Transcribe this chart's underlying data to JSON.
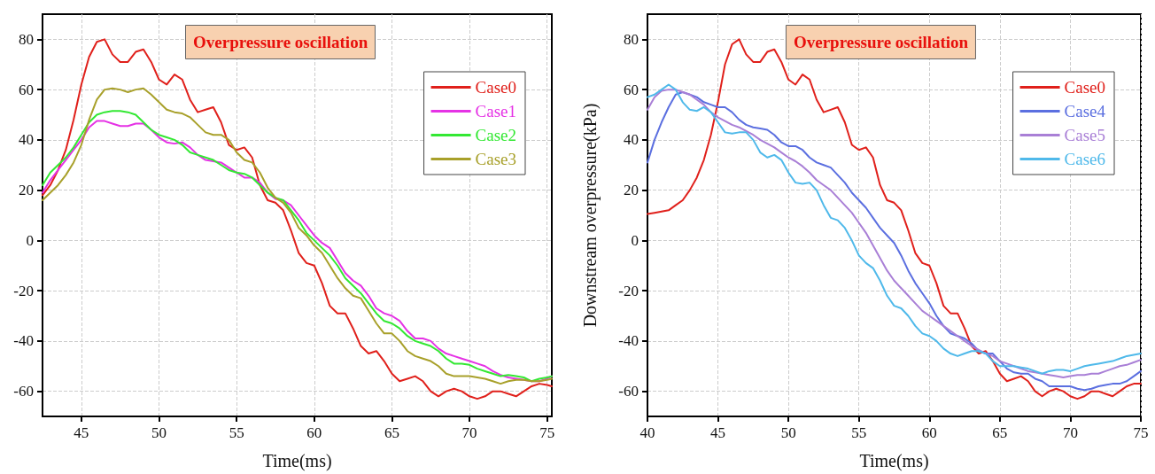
{
  "chart_data": [
    {
      "type": "line",
      "title": "Overpressure oscillation",
      "xlabel": "Time(ms)",
      "xlim": [
        42.5,
        75.3
      ],
      "ylim": [
        -70,
        90
      ],
      "xticks": [
        45,
        50,
        55,
        60,
        65,
        70,
        75
      ],
      "yticks": [
        -60,
        -40,
        -20,
        0,
        20,
        40,
        60,
        80
      ],
      "grid": true,
      "legend": "top right",
      "x": [
        42.5,
        43,
        43.5,
        44,
        44.5,
        45,
        45.5,
        46,
        46.5,
        47,
        47.5,
        48,
        48.5,
        49,
        49.5,
        50,
        50.5,
        51,
        51.5,
        52,
        52.5,
        53,
        53.5,
        54,
        54.5,
        55,
        55.5,
        56,
        56.5,
        57,
        57.5,
        58,
        58.5,
        59,
        59.5,
        60,
        60.5,
        61,
        61.5,
        62,
        62.5,
        63,
        63.5,
        64,
        64.5,
        65,
        65.5,
        66,
        66.5,
        67,
        67.5,
        68,
        68.5,
        69,
        69.5,
        70,
        70.5,
        71,
        71.5,
        72,
        72.5,
        73,
        73.5,
        74,
        74.5,
        75,
        75.3
      ],
      "series": [
        {
          "name": "Case0",
          "color": "#e0201b",
          "values": [
            18,
            22,
            28,
            36,
            48,
            62,
            73,
            79,
            80,
            74,
            71,
            71,
            75,
            76,
            71,
            64,
            62,
            66,
            64,
            56,
            51,
            52,
            53,
            47,
            38,
            36,
            37,
            33,
            22,
            16,
            15,
            12,
            4,
            -5,
            -9,
            -10,
            -17,
            -26,
            -29,
            -29,
            -35,
            -42,
            -45,
            -44,
            -48,
            -53,
            -56,
            -55,
            -54,
            -56,
            -60,
            -62,
            -60,
            -59,
            -60,
            -62,
            -63,
            -62,
            -60,
            -60,
            -61,
            -62,
            -60,
            -58,
            -57,
            -57.5,
            -58
          ]
        },
        {
          "name": "Case1",
          "color": "#e532e5",
          "values": [
            19,
            24,
            28,
            32,
            36,
            40,
            45,
            47.5,
            47.5,
            46.5,
            45.5,
            45.5,
            46.5,
            46.5,
            44,
            41,
            39,
            38.5,
            39,
            37,
            34,
            32,
            31.5,
            31,
            29,
            27,
            25,
            25,
            23,
            19,
            16.5,
            16,
            14,
            10,
            6,
            2,
            -1,
            -3,
            -8,
            -13,
            -16,
            -18,
            -22,
            -27,
            -29,
            -30,
            -32,
            -36,
            -39,
            -39,
            -40,
            -43,
            -45,
            -46,
            -47,
            -48,
            -49,
            -50,
            -52,
            -53.5,
            -54.5,
            -55,
            -55.5,
            -56,
            -56,
            -55,
            -54
          ]
        },
        {
          "name": "Case2",
          "color": "#33e833",
          "values": [
            22,
            27,
            30,
            33,
            37,
            42,
            47,
            50,
            51,
            51.5,
            51.5,
            51,
            50,
            47,
            44,
            42,
            41,
            40,
            38,
            35,
            34,
            33,
            32,
            30,
            28,
            27,
            26.5,
            25,
            22,
            19,
            17,
            16,
            12,
            8,
            3,
            0,
            -3,
            -6,
            -10,
            -15,
            -18,
            -21,
            -25,
            -29,
            -32,
            -33,
            -35,
            -38,
            -40,
            -41,
            -42,
            -44,
            -47,
            -49,
            -49,
            -49.5,
            -51,
            -52,
            -53,
            -54,
            -53.5,
            -54,
            -54.5,
            -56,
            -55,
            -54.5,
            -54
          ]
        },
        {
          "name": "Case3",
          "color": "#a8a02a",
          "values": [
            16,
            19,
            22,
            26,
            31,
            38,
            48,
            56,
            60,
            60.5,
            60,
            59,
            60,
            60.5,
            58,
            55,
            52,
            51,
            50.5,
            49,
            46,
            43,
            42,
            42,
            40,
            35,
            32,
            31,
            27,
            21,
            17,
            15,
            11,
            5,
            2,
            -2,
            -5,
            -10,
            -15,
            -19,
            -22,
            -23,
            -28,
            -33,
            -37,
            -37,
            -40,
            -44,
            -46,
            -47,
            -48,
            -50,
            -53,
            -54,
            -54,
            -54,
            -54.5,
            -55,
            -56,
            -57,
            -56,
            -55.5,
            -55.5,
            -56,
            -56,
            -55.5,
            -55
          ]
        }
      ]
    },
    {
      "type": "line",
      "title": "Overpressure oscillation",
      "xlabel": "Time(ms)",
      "ylabel": "Downstream overpressure(kPa)",
      "xlim": [
        40,
        75
      ],
      "ylim": [
        -70,
        90
      ],
      "xticks": [
        40,
        45,
        50,
        55,
        60,
        65,
        70,
        75
      ],
      "yticks": [
        -60,
        -40,
        -20,
        0,
        20,
        40,
        60,
        80
      ],
      "grid": true,
      "legend": "top right",
      "x": [
        40,
        40.5,
        41,
        41.5,
        42,
        42.5,
        43,
        43.5,
        44,
        44.5,
        45,
        45.5,
        46,
        46.5,
        47,
        47.5,
        48,
        48.5,
        49,
        49.5,
        50,
        50.5,
        51,
        51.5,
        52,
        52.5,
        53,
        53.5,
        54,
        54.5,
        55,
        55.5,
        56,
        56.5,
        57,
        57.5,
        58,
        58.5,
        59,
        59.5,
        60,
        60.5,
        61,
        61.5,
        62,
        62.5,
        63,
        63.5,
        64,
        64.5,
        65,
        65.5,
        66,
        66.5,
        67,
        67.5,
        68,
        68.5,
        69,
        69.5,
        70,
        70.5,
        71,
        71.5,
        72,
        72.5,
        73,
        73.5,
        74,
        74.5,
        75
      ],
      "series": [
        {
          "name": "Case0",
          "color": "#e0201b",
          "values": [
            10.5,
            11,
            11.5,
            12,
            14,
            16,
            20,
            25,
            32,
            42,
            55,
            70,
            78,
            80,
            74,
            71,
            71,
            75,
            76,
            71,
            64,
            62,
            66,
            64,
            56,
            51,
            52,
            53,
            47,
            38,
            36,
            37,
            33,
            22,
            16,
            15,
            12,
            4,
            -5,
            -9,
            -10,
            -17,
            -26,
            -29,
            -29,
            -35,
            -42,
            -45,
            -44,
            -48,
            -53,
            -56,
            -55,
            -54,
            -56,
            -60,
            -62,
            -60,
            -59,
            -60,
            -62,
            -63,
            -62,
            -60,
            -60,
            -61,
            -62,
            -60,
            -58,
            -57,
            -57
          ]
        },
        {
          "name": "Case4",
          "color": "#5b6fe0",
          "values": [
            31,
            40,
            47,
            53,
            58,
            59,
            58,
            57,
            55,
            54,
            53,
            53,
            51,
            48,
            46,
            45,
            44.5,
            44,
            42,
            39,
            37.5,
            37.5,
            36,
            33,
            31,
            30,
            29,
            26,
            23,
            19,
            16,
            13,
            9,
            5,
            2,
            -1,
            -6,
            -12,
            -17,
            -21,
            -25,
            -30,
            -34,
            -37,
            -38,
            -39,
            -41,
            -44,
            -45,
            -45,
            -48,
            -51,
            -52.5,
            -53,
            -53,
            -55,
            -56,
            -58,
            -58,
            -58,
            -58,
            -59,
            -59.5,
            -59,
            -58,
            -57.5,
            -57,
            -57,
            -56,
            -54,
            -52
          ]
        },
        {
          "name": "Case5",
          "color": "#a97fd6",
          "values": [
            52,
            57,
            59.5,
            60,
            60,
            59,
            58,
            56,
            54,
            51,
            49,
            47.5,
            46,
            45,
            43.5,
            42,
            40,
            38.5,
            37,
            35,
            33,
            31.5,
            29.5,
            27,
            24,
            22,
            20,
            17,
            14,
            11,
            7,
            3,
            -2,
            -7,
            -12,
            -16,
            -19,
            -22,
            -25,
            -28,
            -30,
            -32,
            -34,
            -36,
            -38,
            -40,
            -42,
            -43.5,
            -45,
            -46,
            -48,
            -49,
            -50,
            -51,
            -52,
            -52.5,
            -53,
            -53.5,
            -54,
            -54.5,
            -54,
            -53.5,
            -53.5,
            -53,
            -53,
            -52,
            -51,
            -50,
            -49.5,
            -48.5,
            -47.5
          ]
        },
        {
          "name": "Case6",
          "color": "#4fb9ea",
          "values": [
            57,
            58,
            60,
            62,
            60,
            55,
            52,
            51.5,
            53,
            51,
            47,
            43,
            42.5,
            43,
            43,
            40,
            35,
            33,
            34,
            32,
            27,
            23,
            22.5,
            23,
            20,
            14,
            9,
            8,
            5,
            0,
            -6,
            -9,
            -11,
            -16,
            -22,
            -26,
            -27,
            -30,
            -34,
            -37,
            -38,
            -40,
            -43,
            -45,
            -46,
            -45,
            -44,
            -44,
            -45,
            -48,
            -50,
            -50,
            -50,
            -50.5,
            -51,
            -52,
            -53,
            -52,
            -51.5,
            -51.5,
            -52,
            -51,
            -50,
            -49.5,
            -49,
            -48.5,
            -48,
            -47,
            -46,
            -45.5,
            -45
          ]
        }
      ]
    }
  ]
}
